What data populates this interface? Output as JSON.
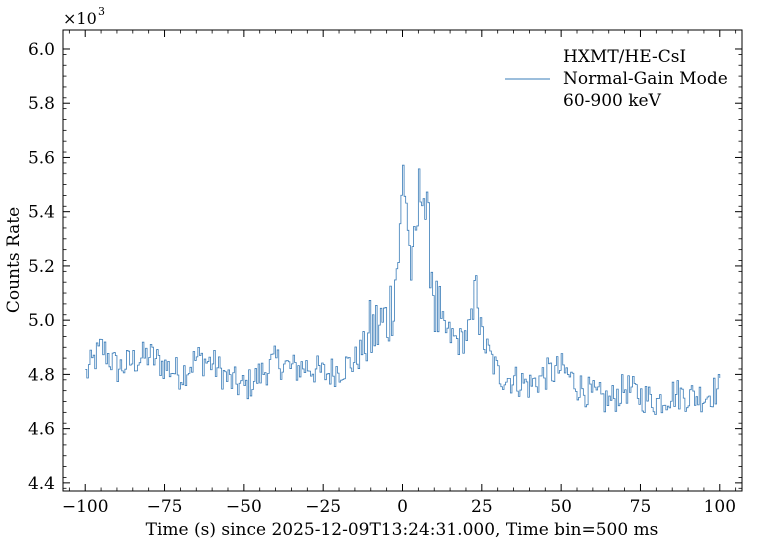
{
  "chart_data": {
    "type": "line",
    "xlabel": "Time (s) since 2025-12-09T13:24:31.000, Time bin=500 ms",
    "ylabel": "Counts Rate",
    "y_multiplier": {
      "base": "×10",
      "exponent": "3"
    },
    "xlim": [
      -107,
      107
    ],
    "ylim": [
      4.37,
      6.07
    ],
    "x_ticks": [
      -100,
      -75,
      -50,
      -25,
      0,
      25,
      50,
      75,
      100
    ],
    "x_tick_labels": [
      "−100",
      "−75",
      "−50",
      "−25",
      "0",
      "25",
      "50",
      "75",
      "100"
    ],
    "y_ticks": [
      4.4,
      4.6,
      4.8,
      5.0,
      5.2,
      5.4,
      5.6,
      5.8,
      6.0
    ],
    "y_tick_labels": [
      "4.4",
      "4.6",
      "4.8",
      "5.0",
      "5.2",
      "5.4",
      "5.6",
      "5.8",
      "6.0"
    ],
    "line_color": "#3a7cb8",
    "grid": false,
    "legend_position": "top-right",
    "series": [
      {
        "name": "HXMT/HE-CsI Normal-Gain Mode 60-900 keV",
        "legend_lines": [
          "HXMT/HE-CsI",
          "Normal-Gain Mode",
          "60-900 keV"
        ],
        "x": [
          -100,
          -95,
          -90,
          -85,
          -80,
          -75,
          -70,
          -65,
          -60,
          -55,
          -50,
          -45,
          -40,
          -35,
          -30,
          -25,
          -20,
          -15,
          -10,
          -5,
          -3,
          -1,
          0,
          1,
          2,
          3,
          4,
          5,
          6,
          7,
          8,
          9,
          10,
          12,
          14,
          16,
          18,
          20,
          22,
          23,
          24,
          26,
          28,
          30,
          35,
          40,
          45,
          50,
          55,
          60,
          65,
          70,
          75,
          80,
          85,
          90,
          95,
          100
        ],
        "y": [
          4.8,
          4.9,
          4.82,
          4.85,
          4.87,
          4.83,
          4.8,
          4.86,
          4.84,
          4.78,
          4.75,
          4.8,
          4.85,
          4.82,
          4.83,
          4.8,
          4.82,
          4.85,
          4.95,
          5.0,
          5.1,
          5.3,
          5.55,
          5.45,
          5.25,
          5.15,
          5.3,
          5.45,
          5.55,
          5.4,
          5.3,
          5.2,
          5.05,
          4.98,
          4.95,
          4.93,
          4.92,
          4.95,
          5.0,
          5.2,
          4.98,
          4.9,
          4.85,
          4.8,
          4.78,
          4.76,
          4.8,
          4.82,
          4.76,
          4.72,
          4.7,
          4.75,
          4.72,
          4.7,
          4.73,
          4.72,
          4.72,
          4.75
        ]
      }
    ]
  }
}
